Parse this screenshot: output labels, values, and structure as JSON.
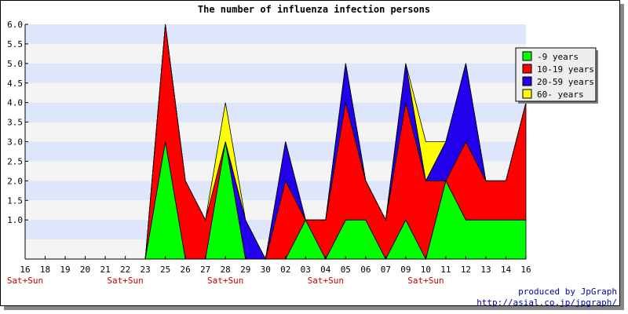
{
  "chart_data": {
    "type": "area",
    "stacked": true,
    "title": "The number of influenza infection persons",
    "categories": [
      "16",
      "18",
      "19",
      "20",
      "21",
      "22",
      "23",
      "25",
      "26",
      "27",
      "28",
      "29",
      "30",
      "02",
      "03",
      "04",
      "05",
      "06",
      "07",
      "09",
      "10",
      "11",
      "12",
      "13",
      "14",
      "16"
    ],
    "weekend_labels": [
      "Sat+Sun",
      "",
      "",
      "",
      "",
      "Sat+Sun",
      "",
      "",
      "",
      "",
      "Sat+Sun",
      "",
      "",
      "",
      "",
      "Sat+Sun",
      "",
      "",
      "",
      "",
      "Sat+Sun",
      "",
      "",
      "",
      "",
      ""
    ],
    "series": [
      {
        "name": "-9 years",
        "color": "#00ff00",
        "values": [
          0,
          0,
          0,
          0,
          0,
          0,
          0,
          3,
          0,
          0,
          3,
          0,
          0,
          0,
          1,
          0,
          1,
          1,
          0,
          1,
          0,
          2,
          1,
          1,
          1,
          1
        ]
      },
      {
        "name": "10-19 years",
        "color": "#ff0000",
        "values": [
          0,
          0,
          0,
          0,
          0,
          0,
          0,
          3,
          2,
          1,
          0,
          0,
          0,
          2,
          0,
          1,
          3,
          1,
          1,
          3,
          2,
          0,
          2,
          1,
          1,
          3
        ]
      },
      {
        "name": "20-59 years",
        "color": "#2200ee",
        "values": [
          0,
          0,
          0,
          0,
          0,
          0,
          0,
          0,
          0,
          0,
          0,
          1,
          0,
          1,
          0,
          0,
          1,
          0,
          0,
          1,
          0,
          1,
          2,
          0,
          0,
          0
        ]
      },
      {
        "name": "60- years",
        "color": "#ffff00",
        "values": [
          0,
          0,
          0,
          0,
          0,
          0,
          0,
          0,
          0,
          0,
          1,
          0,
          0,
          0,
          0,
          0,
          0,
          0,
          0,
          0,
          1,
          0,
          0,
          0,
          0,
          0
        ]
      }
    ],
    "ylim": [
      0,
      6
    ],
    "ytick_labels": [
      "1.0",
      "1.5",
      "2.0",
      "2.5",
      "3.0",
      "3.5",
      "4.0",
      "4.5",
      "5.0",
      "5.5",
      "6.0"
    ],
    "grid": true,
    "legend_position": "top-right",
    "band_colors": [
      "#dde6fa",
      "#f4f4f4"
    ]
  },
  "credits": {
    "line1": "produced by JpGraph",
    "line2": "http://asial.co.jp/jpgraph/"
  }
}
